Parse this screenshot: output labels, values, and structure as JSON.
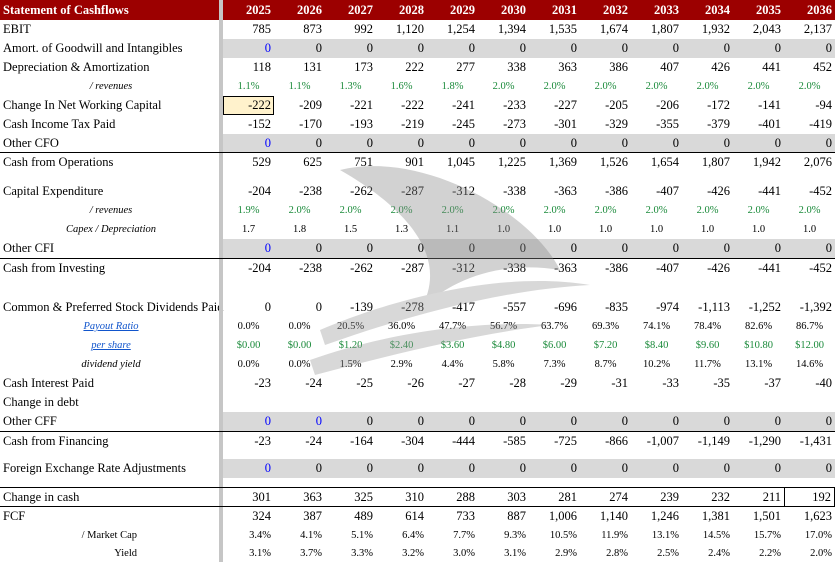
{
  "header": {
    "title": "Statement of Cashflows",
    "years": [
      "2025",
      "2026",
      "2027",
      "2028",
      "2029",
      "2030",
      "2031",
      "2032",
      "2033",
      "2034",
      "2035",
      "2036"
    ]
  },
  "colors": {
    "header_bg": "#9c0000",
    "input_blue": "#0000ff",
    "ratio_green": "#1a8a3a",
    "input_grey": "#d9d9d9",
    "selected_cell": "#fff2cc"
  },
  "selected_cell": {
    "row": "Change In Net Working Capital",
    "year": "2025"
  },
  "rows": [
    {
      "label": "EBIT",
      "values": [
        "785",
        "873",
        "992",
        "1,120",
        "1,254",
        "1,394",
        "1,535",
        "1,674",
        "1,807",
        "1,932",
        "2,043",
        "2,137"
      ]
    },
    {
      "label": "Amort. of Goodwill and Intangibles",
      "values": [
        "0",
        "0",
        "0",
        "0",
        "0",
        "0",
        "0",
        "0",
        "0",
        "0",
        "0",
        "0"
      ],
      "input_cells": [
        0
      ]
    },
    {
      "label": "Depreciation & Amortization",
      "values": [
        "118",
        "131",
        "173",
        "222",
        "277",
        "338",
        "363",
        "386",
        "407",
        "426",
        "441",
        "452"
      ]
    },
    {
      "label": "/ revenues",
      "values": [
        "1.1%",
        "1.1%",
        "1.3%",
        "1.6%",
        "1.8%",
        "2.0%",
        "2.0%",
        "2.0%",
        "2.0%",
        "2.0%",
        "2.0%",
        "2.0%"
      ]
    },
    {
      "label": "Change In Net Working Capital",
      "values": [
        "-222",
        "-209",
        "-221",
        "-222",
        "-241",
        "-233",
        "-227",
        "-205",
        "-206",
        "-172",
        "-141",
        "-94"
      ]
    },
    {
      "label": "Cash Income Tax Paid",
      "values": [
        "-152",
        "-170",
        "-193",
        "-219",
        "-245",
        "-273",
        "-301",
        "-329",
        "-355",
        "-379",
        "-401",
        "-419"
      ]
    },
    {
      "label": "Other CFO",
      "values": [
        "0",
        "0",
        "0",
        "0",
        "0",
        "0",
        "0",
        "0",
        "0",
        "0",
        "0",
        "0"
      ],
      "input_cells": [
        0
      ]
    },
    {
      "label": "Cash from Operations",
      "values": [
        "529",
        "625",
        "751",
        "901",
        "1,045",
        "1,225",
        "1,369",
        "1,526",
        "1,654",
        "1,807",
        "1,942",
        "2,076"
      ]
    },
    {
      "label": "",
      "values": []
    },
    {
      "label": "Capital Expenditure",
      "values": [
        "-204",
        "-238",
        "-262",
        "-287",
        "-312",
        "-338",
        "-363",
        "-386",
        "-407",
        "-426",
        "-441",
        "-452"
      ]
    },
    {
      "label": "/ revenues",
      "values": [
        "1.9%",
        "2.0%",
        "2.0%",
        "2.0%",
        "2.0%",
        "2.0%",
        "2.0%",
        "2.0%",
        "2.0%",
        "2.0%",
        "2.0%",
        "2.0%"
      ]
    },
    {
      "label": "Capex / Depreciation",
      "values": [
        "1.7",
        "1.8",
        "1.5",
        "1.3",
        "1.1",
        "1.0",
        "1.0",
        "1.0",
        "1.0",
        "1.0",
        "1.0",
        "1.0"
      ]
    },
    {
      "label": "Other CFI",
      "values": [
        "0",
        "0",
        "0",
        "0",
        "0",
        "0",
        "0",
        "0",
        "0",
        "0",
        "0",
        "0"
      ],
      "input_cells": [
        0
      ]
    },
    {
      "label": "Cash from Investing",
      "values": [
        "-204",
        "-238",
        "-262",
        "-287",
        "-312",
        "-338",
        "-363",
        "-386",
        "-407",
        "-426",
        "-441",
        "-452"
      ]
    },
    {
      "label": "",
      "values": []
    },
    {
      "label": "Common & Preferred Stock Dividends Paid",
      "values": [
        "0",
        "0",
        "-139",
        "-278",
        "-417",
        "-557",
        "-696",
        "-835",
        "-974",
        "-1,113",
        "-1,252",
        "-1,392"
      ]
    },
    {
      "label": "Payout Ratio",
      "values": [
        "0.0%",
        "0.0%",
        "20.5%",
        "36.0%",
        "47.7%",
        "56.7%",
        "63.7%",
        "69.3%",
        "74.1%",
        "78.4%",
        "82.6%",
        "86.7%"
      ]
    },
    {
      "label": "per share",
      "values": [
        "$0.00",
        "$0.00",
        "$1.20",
        "$2.40",
        "$3.60",
        "$4.80",
        "$6.00",
        "$7.20",
        "$8.40",
        "$9.60",
        "$10.80",
        "$12.00"
      ]
    },
    {
      "label": "dividend yield",
      "values": [
        "0.0%",
        "0.0%",
        "1.5%",
        "2.9%",
        "4.4%",
        "5.8%",
        "7.3%",
        "8.7%",
        "10.2%",
        "11.7%",
        "13.1%",
        "14.6%"
      ]
    },
    {
      "label": "Cash Interest Paid",
      "values": [
        "-23",
        "-24",
        "-25",
        "-26",
        "-27",
        "-28",
        "-29",
        "-31",
        "-33",
        "-35",
        "-37",
        "-40"
      ]
    },
    {
      "label": "Change in debt",
      "values": [
        "",
        "",
        "",
        "",
        "",
        "",
        "",
        "",
        "",
        "",
        "",
        ""
      ]
    },
    {
      "label": "Other CFF",
      "values": [
        "0",
        "0",
        "0",
        "0",
        "0",
        "0",
        "0",
        "0",
        "0",
        "0",
        "0",
        "0"
      ],
      "input_cells": [
        0,
        1
      ]
    },
    {
      "label": "Cash from Financing",
      "values": [
        "-23",
        "-24",
        "-164",
        "-304",
        "-444",
        "-585",
        "-725",
        "-866",
        "-1,007",
        "-1,149",
        "-1,290",
        "-1,431"
      ]
    },
    {
      "label": "",
      "values": []
    },
    {
      "label": "Foreign Exchange Rate Adjustments",
      "values": [
        "0",
        "0",
        "0",
        "0",
        "0",
        "0",
        "0",
        "0",
        "0",
        "0",
        "0",
        "0"
      ],
      "input_cells": [
        0
      ]
    },
    {
      "label": "",
      "values": []
    },
    {
      "label": "Change in cash",
      "values": [
        "301",
        "363",
        "325",
        "310",
        "288",
        "303",
        "281",
        "274",
        "239",
        "232",
        "211",
        "192"
      ]
    },
    {
      "label": "FCF",
      "values": [
        "324",
        "387",
        "489",
        "614",
        "733",
        "887",
        "1,006",
        "1,140",
        "1,246",
        "1,381",
        "1,501",
        "1,623"
      ]
    },
    {
      "label": "/ Market Cap",
      "values": [
        "3.4%",
        "4.1%",
        "5.1%",
        "6.4%",
        "7.7%",
        "9.3%",
        "10.5%",
        "11.9%",
        "13.1%",
        "14.5%",
        "15.7%",
        "17.0%"
      ]
    },
    {
      "label": "Yield",
      "values": [
        "3.1%",
        "3.7%",
        "3.3%",
        "3.2%",
        "3.0%",
        "3.1%",
        "2.9%",
        "2.8%",
        "2.5%",
        "2.4%",
        "2.2%",
        "2.0%"
      ]
    }
  ]
}
